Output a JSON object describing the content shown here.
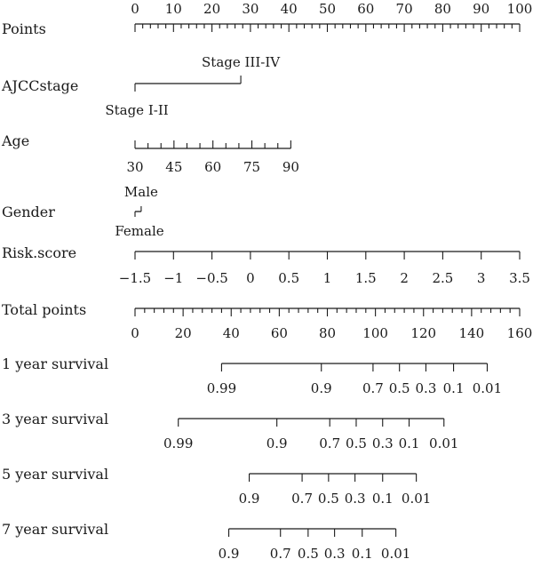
{
  "chart_data": {
    "type": "nomogram",
    "points_axis": {
      "label": "Points",
      "range": [
        0,
        100
      ],
      "ticks": [
        0,
        10,
        20,
        30,
        40,
        50,
        60,
        70,
        80,
        90,
        100
      ],
      "minor_step": 2
    },
    "variables": [
      {
        "name": "AJCCstage",
        "levels": [
          {
            "label": "Stage I-II",
            "points": 0
          },
          {
            "label": "Stage III-IV",
            "points": 27.5
          }
        ]
      },
      {
        "name": "Age",
        "range": [
          30,
          90
        ],
        "points_range": [
          0,
          40.5
        ],
        "ticks": [
          30,
          45,
          60,
          75,
          90
        ],
        "minor_step": 5
      },
      {
        "name": "Gender",
        "levels": [
          {
            "label": "Male",
            "points": 1.6
          },
          {
            "label": "Female",
            "points": 0
          }
        ]
      },
      {
        "name": "Risk.score",
        "range": [
          -1.5,
          3.5
        ],
        "points_range": [
          0,
          100
        ],
        "ticks": [
          -1.5,
          -1,
          -0.5,
          0,
          0.5,
          1,
          1.5,
          2,
          2.5,
          3,
          3.5
        ],
        "tick_labels": [
          "−1.5",
          "−1",
          "−0.5",
          "0",
          "0.5",
          "1",
          "1.5",
          "2",
          "2.5",
          "3",
          "3.5"
        ],
        "minor_step": 0.5
      }
    ],
    "total_points_axis": {
      "label": "Total points",
      "range": [
        0,
        160
      ],
      "ticks": [
        0,
        20,
        40,
        60,
        80,
        100,
        120,
        140,
        160
      ],
      "minor_step": 4
    },
    "outcomes": [
      {
        "name": "1 year survival",
        "ticks": [
          {
            "label": "0.99",
            "total_points": 36
          },
          {
            "label": "0.9",
            "total_points": 77.5
          },
          {
            "label": "0.7",
            "total_points": 99
          },
          {
            "label": "0.5",
            "total_points": 110
          },
          {
            "label": "0.3",
            "total_points": 121
          },
          {
            "label": "0.1",
            "total_points": 132.5
          },
          {
            "label": "0.01",
            "total_points": 146.5
          }
        ]
      },
      {
        "name": "3 year survival",
        "ticks": [
          {
            "label": "0.99",
            "total_points": 18
          },
          {
            "label": "0.9",
            "total_points": 59
          },
          {
            "label": "0.7",
            "total_points": 81
          },
          {
            "label": "0.5",
            "total_points": 92
          },
          {
            "label": "0.3",
            "total_points": 103
          },
          {
            "label": "0.1",
            "total_points": 114
          },
          {
            "label": "0.01",
            "total_points": 128.5
          }
        ]
      },
      {
        "name": "5 year survival",
        "ticks": [
          {
            "label": "0.9",
            "total_points": 47.5
          },
          {
            "label": "0.7",
            "total_points": 69.5
          },
          {
            "label": "0.5",
            "total_points": 80.5
          },
          {
            "label": "0.3",
            "total_points": 91.5
          },
          {
            "label": "0.1",
            "total_points": 103
          },
          {
            "label": "0.01",
            "total_points": 117
          }
        ]
      },
      {
        "name": "7 year survival",
        "ticks": [
          {
            "label": "0.9",
            "total_points": 39
          },
          {
            "label": "0.7",
            "total_points": 60.5
          },
          {
            "label": "0.5",
            "total_points": 72
          },
          {
            "label": "0.3",
            "total_points": 83
          },
          {
            "label": "0.1",
            "total_points": 94.5
          },
          {
            "label": "0.01",
            "total_points": 108.5
          }
        ]
      }
    ]
  }
}
